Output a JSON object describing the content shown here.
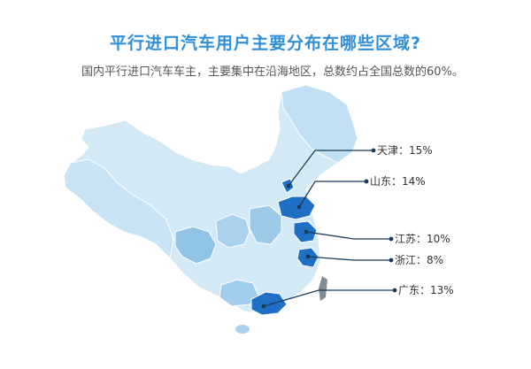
{
  "title": "平行进口汽车用户主要分布在哪些区域?",
  "subtitle": "国内平行进口汽车车主，主要集中在沿海地区，总数约占全国总数的60%。",
  "regions": [
    {
      "name": "天津",
      "share_percent": 15,
      "label": "天津：15%"
    },
    {
      "name": "山东",
      "share_percent": 14,
      "label": "山东：14%"
    },
    {
      "name": "江苏",
      "share_percent": 10,
      "label": "江苏：10%"
    },
    {
      "name": "浙江",
      "share_percent": 8,
      "label": "浙江：8%"
    },
    {
      "name": "广东",
      "share_percent": 13,
      "label": "广东：13%"
    }
  ],
  "colors": {
    "title": "#2f8fd8",
    "map_base": "#d3e9f6",
    "map_light": "#bcdcf0",
    "map_mid": "#8fc4e7",
    "map_highlight": "#1f6fc4",
    "leader_line": "#1a3c5a",
    "taiwan": "#7f8c93"
  }
}
